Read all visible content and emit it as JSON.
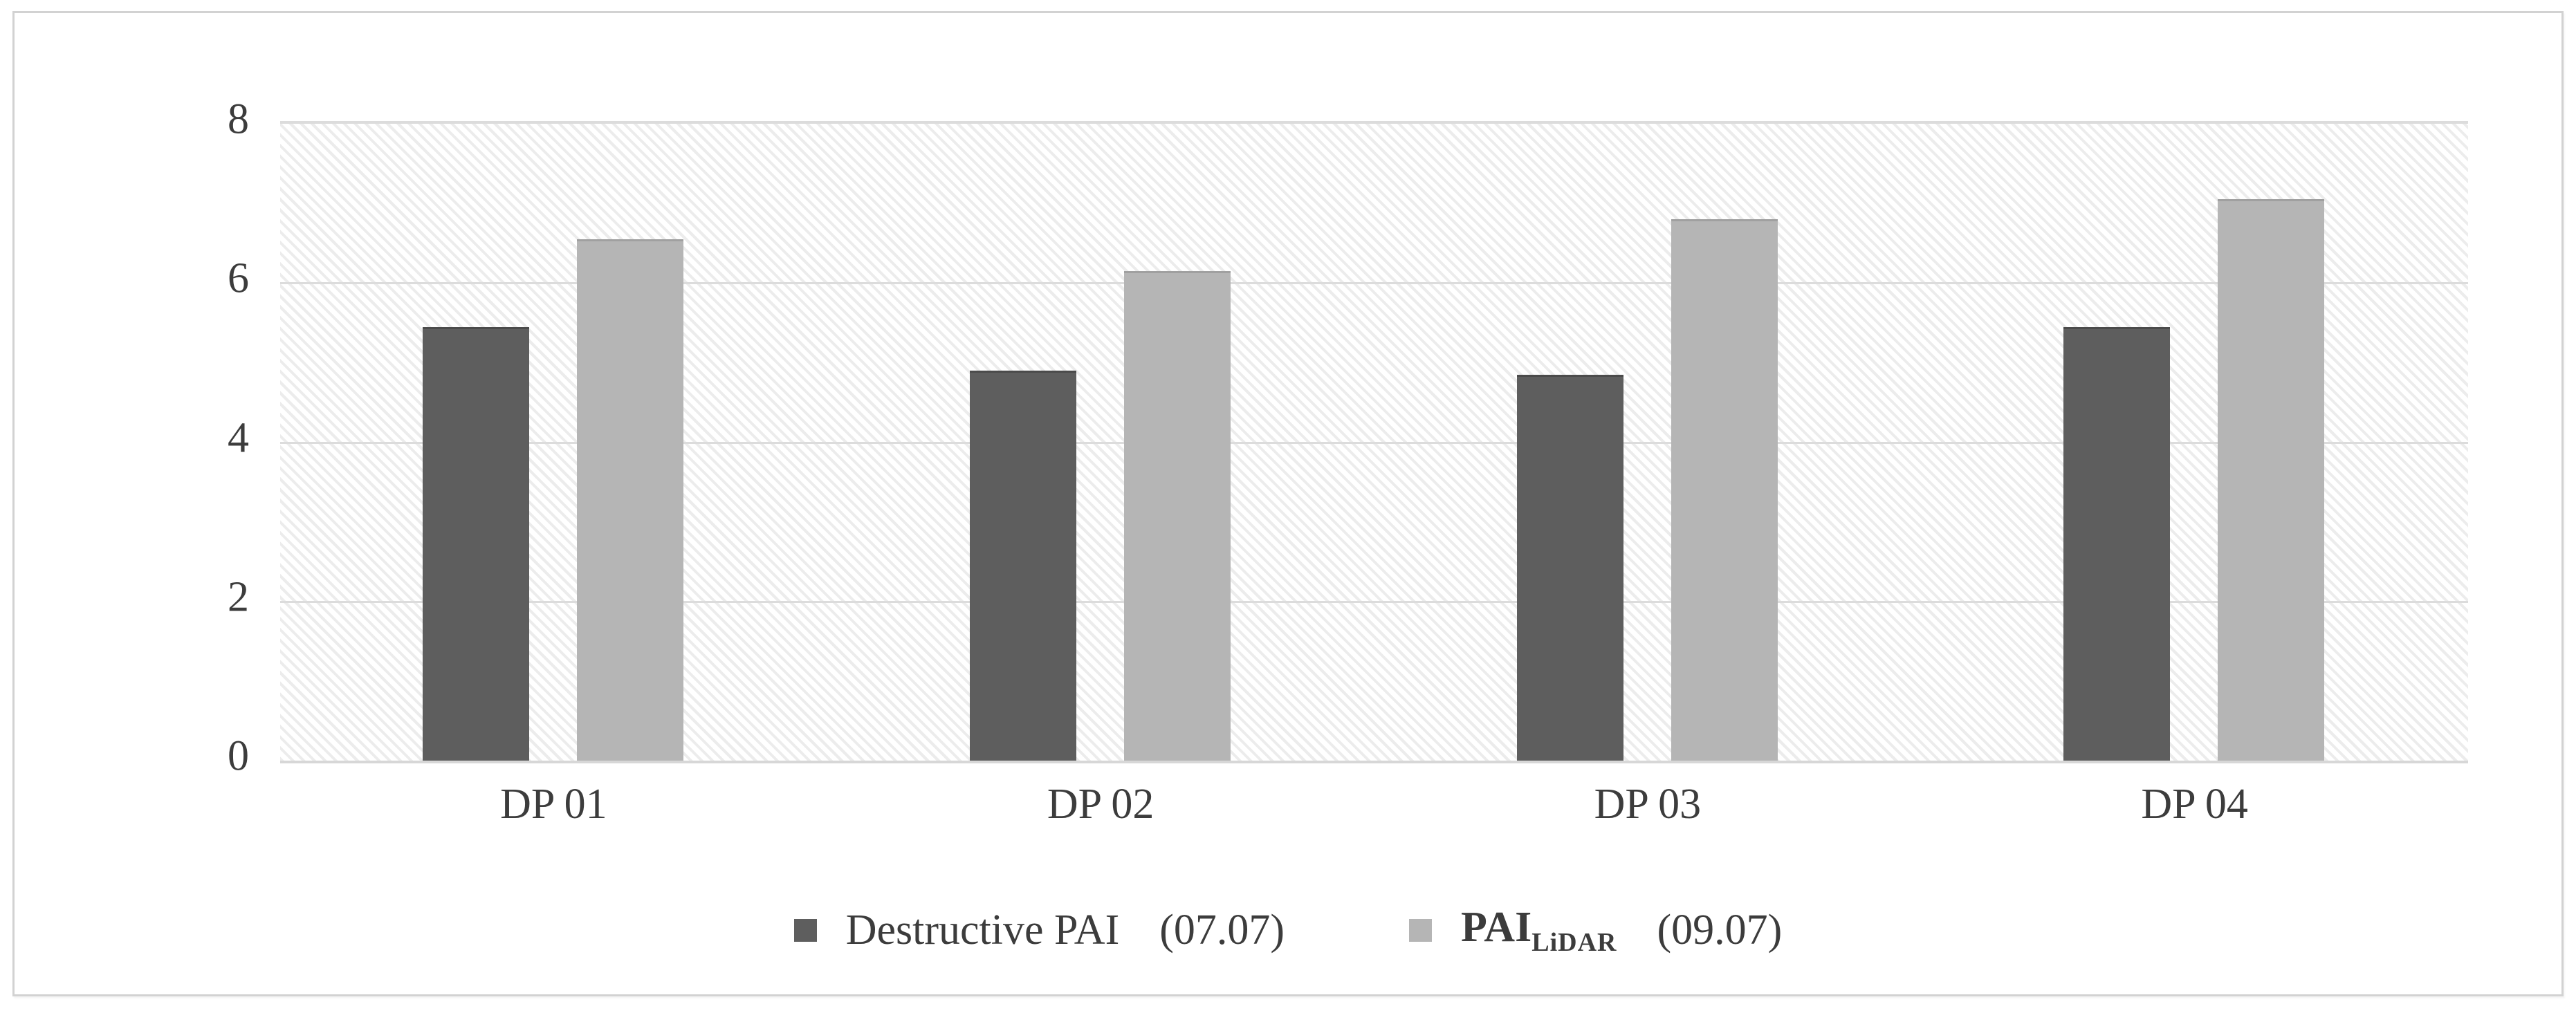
{
  "figure": {
    "background": "#ffffff",
    "frame_border_color": "#d2d2d2"
  },
  "chart_data": {
    "type": "bar",
    "title": "",
    "xlabel": "",
    "ylabel": "",
    "categories": [
      "DP 01",
      "DP 02",
      "DP 03",
      "DP 04"
    ],
    "series": [
      {
        "name": "Destructive PAI",
        "subscript": "",
        "date_label": "(07.07)",
        "color": "#5e5e5e",
        "values": [
          5.45,
          4.9,
          4.85,
          5.45
        ]
      },
      {
        "name": "PAI",
        "subscript": "LiDAR",
        "date_label": "(09.07)",
        "color": "#b5b5b5",
        "values": [
          6.55,
          6.15,
          6.8,
          7.05
        ]
      }
    ],
    "ylim": [
      0,
      8
    ],
    "yticks": [
      0,
      2,
      4,
      6,
      8
    ],
    "grid": "horizontal",
    "gridline_color": "#dcdcdc",
    "plot_background": "diagonal-hatch",
    "hatch_color": "#ececec",
    "legend_position": "bottom"
  }
}
